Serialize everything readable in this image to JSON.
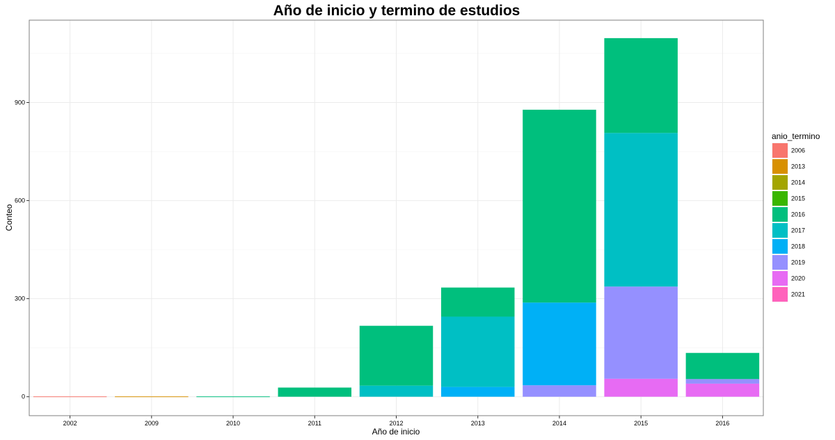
{
  "chart_data": {
    "type": "bar",
    "stacked": true,
    "title": "Año de inicio y termino de estudios",
    "xlabel": "Año de inicio",
    "ylabel": "Conteo",
    "categories": [
      "2002",
      "2009",
      "2010",
      "2011",
      "2012",
      "2013",
      "2014",
      "2015",
      "2016"
    ],
    "yticks": [
      0,
      300,
      600,
      900
    ],
    "ylim": [
      -58,
      1152
    ],
    "grid": true,
    "legend": {
      "title": "anio_termino",
      "placement": "right"
    },
    "series": [
      {
        "name": "2006",
        "color": "#F8766D",
        "values": [
          1,
          0,
          0,
          0,
          0,
          0,
          0,
          0,
          0
        ]
      },
      {
        "name": "2013",
        "color": "#D89000",
        "values": [
          0,
          1,
          0,
          0,
          0,
          0,
          0,
          0,
          0
        ]
      },
      {
        "name": "2014",
        "color": "#A3A500",
        "values": [
          0,
          0,
          0,
          0,
          0,
          0,
          0,
          0,
          0
        ]
      },
      {
        "name": "2015",
        "color": "#39B600",
        "values": [
          0,
          0,
          0,
          0,
          0,
          0,
          0,
          0,
          0
        ]
      },
      {
        "name": "2016",
        "color": "#00BF7D",
        "values": [
          0,
          0,
          1,
          28,
          183,
          89,
          590,
          290,
          80
        ]
      },
      {
        "name": "2017",
        "color": "#00BFC4",
        "values": [
          0,
          0,
          0,
          0,
          34,
          215,
          0,
          470,
          0
        ]
      },
      {
        "name": "2018",
        "color": "#00B0F6",
        "values": [
          0,
          0,
          0,
          0,
          0,
          30,
          253,
          0,
          0
        ]
      },
      {
        "name": "2019",
        "color": "#9590FF",
        "values": [
          0,
          0,
          0,
          0,
          0,
          0,
          35,
          282,
          14
        ]
      },
      {
        "name": "2020",
        "color": "#E76BF3",
        "values": [
          0,
          0,
          0,
          0,
          0,
          0,
          0,
          55,
          40
        ]
      },
      {
        "name": "2021",
        "color": "#FF62BC",
        "values": [
          0,
          0,
          0,
          0,
          0,
          0,
          0,
          0,
          0
        ]
      }
    ]
  }
}
